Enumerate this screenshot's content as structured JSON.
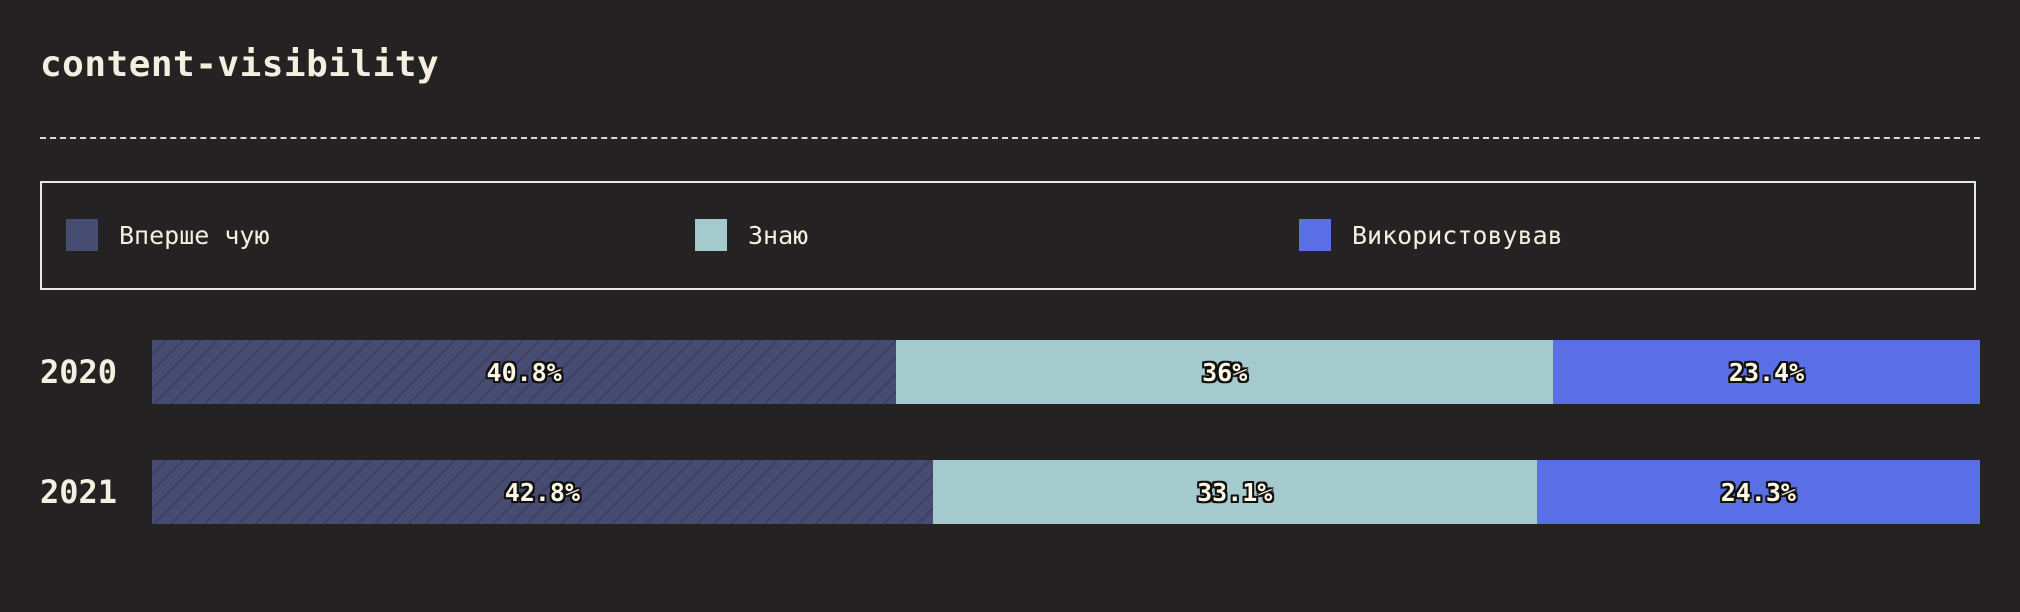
{
  "title": "content-visibility",
  "legend": [
    {
      "label": "Вперше чую",
      "color": "#474c72",
      "icon": "square-swatch"
    },
    {
      "label": "Знаю",
      "color": "#a4cacd",
      "icon": "square-swatch"
    },
    {
      "label": "Використовував",
      "color": "#5a6ee6",
      "icon": "square-swatch"
    }
  ],
  "chart_data": {
    "type": "bar",
    "orientation": "horizontal",
    "stacked": true,
    "normalized": true,
    "title": "content-visibility",
    "categories": [
      "2020",
      "2021"
    ],
    "series": [
      {
        "name": "Вперше чую",
        "values": [
          40.8,
          42.8
        ],
        "labels": [
          "40.8%",
          "42.8%"
        ],
        "color": "#474c72",
        "pattern": "diagonal-stripes"
      },
      {
        "name": "Знаю",
        "values": [
          36,
          33.1
        ],
        "labels": [
          "36%",
          "33.1%"
        ],
        "color": "#a4cacd"
      },
      {
        "name": "Використовував",
        "values": [
          23.4,
          24.3
        ],
        "labels": [
          "23.4%",
          "24.3%"
        ],
        "color": "#5a6ee6"
      }
    ],
    "xlim": [
      0,
      100
    ],
    "legend_position": "top",
    "grid": false
  }
}
